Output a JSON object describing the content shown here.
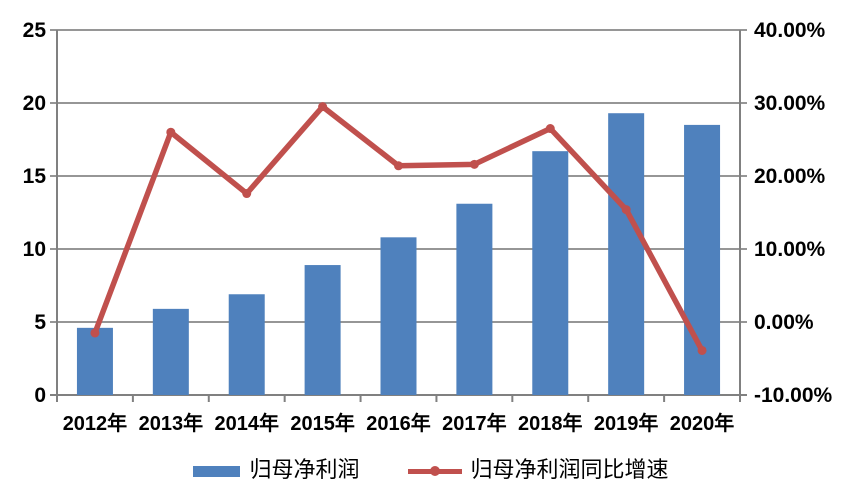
{
  "chart_data": {
    "type": "bar",
    "subtype": "combo-bar-line-dual-axis",
    "title": "",
    "categories": [
      "2012年",
      "2013年",
      "2014年",
      "2015年",
      "2016年",
      "2017年",
      "2018年",
      "2019年",
      "2020年"
    ],
    "series": [
      {
        "name": "归母净利润",
        "type": "bar",
        "axis": "left",
        "color": "#4F81BD",
        "values": [
          4.6,
          5.9,
          6.9,
          8.9,
          10.8,
          13.1,
          16.7,
          19.3,
          18.5
        ]
      },
      {
        "name": "归母净利润同比增速",
        "type": "line",
        "axis": "right",
        "color": "#C0504D",
        "unit": "percent",
        "values": [
          -1.5,
          26.0,
          17.6,
          29.5,
          21.4,
          21.6,
          26.5,
          15.4,
          -3.9
        ]
      }
    ],
    "axes": {
      "left": {
        "min": 0,
        "max": 25,
        "step": 5,
        "tick_labels": [
          "0",
          "5",
          "10",
          "15",
          "20",
          "25"
        ]
      },
      "right": {
        "min": -10,
        "max": 40,
        "step": 10,
        "tick_labels": [
          "-10.00%",
          "0.00%",
          "10.00%",
          "20.00%",
          "30.00%",
          "40.00%"
        ]
      }
    },
    "grid": true,
    "legend_position": "bottom"
  },
  "legend": {
    "bar_label": "归母净利润",
    "line_label": "归母净利润同比增速"
  },
  "colors": {
    "bar": "#4F81BD",
    "line": "#C0504D",
    "grid": "#878787",
    "axis": "#808080",
    "text": "#000000",
    "background": "#FFFFFF"
  }
}
